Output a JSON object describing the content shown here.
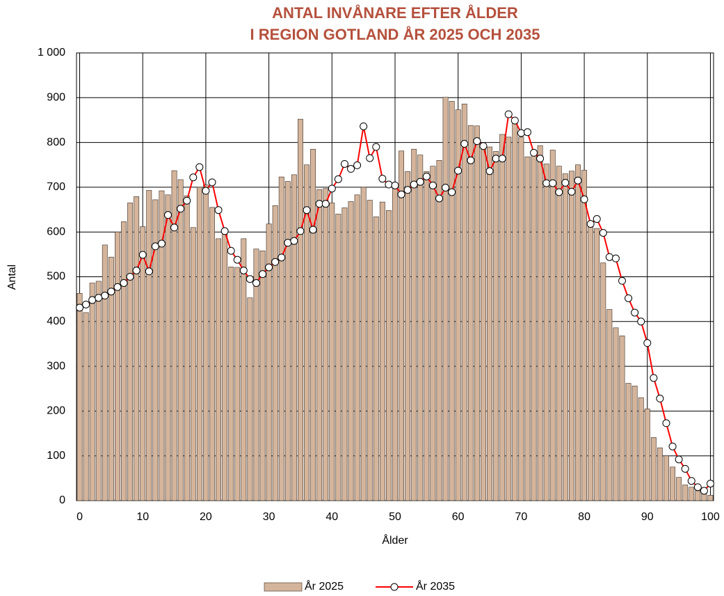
{
  "chart_data": {
    "type": "bar-line",
    "title": [
      "ANTAL INVÅNARE EFTER ÅLDER",
      "I REGION GOTLAND ÅR 2025 OCH 2035"
    ],
    "x_label": "Ålder",
    "y_label": "Antal",
    "x": [
      0,
      1,
      2,
      3,
      4,
      5,
      6,
      7,
      8,
      9,
      10,
      11,
      12,
      13,
      14,
      15,
      16,
      17,
      18,
      19,
      20,
      21,
      22,
      23,
      24,
      25,
      26,
      27,
      28,
      29,
      30,
      31,
      32,
      33,
      34,
      35,
      36,
      37,
      38,
      39,
      40,
      41,
      42,
      43,
      44,
      45,
      46,
      47,
      48,
      49,
      50,
      51,
      52,
      53,
      54,
      55,
      56,
      57,
      58,
      59,
      60,
      61,
      62,
      63,
      64,
      65,
      66,
      67,
      68,
      69,
      70,
      71,
      72,
      73,
      74,
      75,
      76,
      77,
      78,
      79,
      80,
      81,
      82,
      83,
      84,
      85,
      86,
      87,
      88,
      89,
      90,
      91,
      92,
      93,
      94,
      95,
      96,
      97,
      98,
      99,
      100
    ],
    "series": [
      {
        "name": "År 2025",
        "kind": "bar",
        "color": "#d4b59c",
        "values": [
          463,
          420,
          486,
          490,
          571,
          544,
          600,
          623,
          665,
          679,
          612,
          693,
          672,
          692,
          683,
          737,
          717,
          681,
          610,
          700,
          705,
          655,
          585,
          600,
          522,
          521,
          585,
          453,
          562,
          558,
          618,
          659,
          723,
          713,
          728,
          852,
          750,
          785,
          695,
          697,
          665,
          640,
          654,
          668,
          683,
          700,
          671,
          634,
          667,
          648,
          700,
          781,
          735,
          785,
          772,
          735,
          747,
          760,
          901,
          892,
          873,
          886,
          838,
          837,
          797,
          790,
          780,
          818,
          812,
          845,
          812,
          768,
          773,
          793,
          752,
          783,
          747,
          730,
          736,
          750,
          738,
          612,
          608,
          531,
          427,
          386,
          368,
          262,
          256,
          230,
          205,
          141,
          118,
          100,
          75,
          52,
          35,
          30,
          22,
          15,
          12
        ]
      },
      {
        "name": "År 2035",
        "kind": "line",
        "color": "#ff0000",
        "values": [
          431,
          438,
          448,
          453,
          458,
          467,
          477,
          486,
          500,
          514,
          549,
          512,
          568,
          574,
          638,
          610,
          652,
          670,
          722,
          745,
          692,
          711,
          649,
          602,
          558,
          538,
          514,
          495,
          486,
          506,
          521,
          533,
          543,
          576,
          580,
          602,
          649,
          605,
          663,
          663,
          697,
          718,
          752,
          741,
          749,
          836,
          765,
          790,
          719,
          706,
          704,
          684,
          694,
          706,
          712,
          724,
          704,
          675,
          699,
          689,
          737,
          797,
          760,
          803,
          792,
          736,
          764,
          764,
          863,
          849,
          821,
          823,
          777,
          764,
          709,
          709,
          689,
          710,
          690,
          715,
          673,
          618,
          629,
          598,
          544,
          541,
          491,
          452,
          420,
          400,
          352,
          274,
          228,
          173,
          121,
          92,
          71,
          44,
          30,
          22,
          38
        ]
      }
    ],
    "xlim": [
      -0.5,
      100.5
    ],
    "xticks": [
      0,
      10,
      20,
      30,
      40,
      50,
      60,
      70,
      80,
      90,
      100
    ],
    "ylim": [
      0,
      1000
    ],
    "yticks": [
      0,
      100,
      200,
      300,
      400,
      500,
      600,
      700,
      800,
      900,
      {
        "value": 1000,
        "label": "1 000"
      }
    ],
    "grid": true,
    "legend": "bottom"
  }
}
